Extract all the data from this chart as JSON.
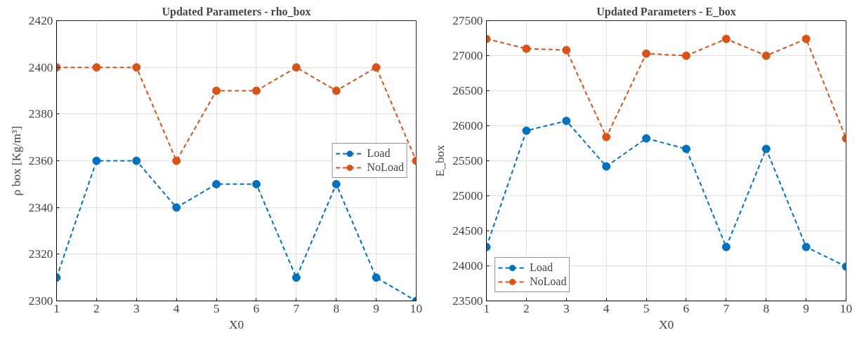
{
  "chart_data": [
    {
      "type": "line",
      "title": "Updated Parameters - rho_box",
      "xlabel": "X0",
      "ylabel": "ρ box [Kg/m³]",
      "x": [
        1,
        2,
        3,
        4,
        5,
        6,
        7,
        8,
        9,
        10
      ],
      "series": [
        {
          "name": "Load",
          "color": "#0072bd",
          "values": [
            2310,
            2360,
            2360,
            2340,
            2350,
            2350,
            2310,
            2350,
            2310,
            2300
          ]
        },
        {
          "name": "NoLoad",
          "color": "#d95319",
          "values": [
            2400,
            2400,
            2400,
            2360,
            2390,
            2390,
            2400,
            2390,
            2400,
            2360
          ]
        }
      ],
      "xlim": [
        1,
        10
      ],
      "xticks": [
        1,
        2,
        3,
        4,
        5,
        6,
        7,
        8,
        9,
        10
      ],
      "ylim": [
        2300,
        2420
      ],
      "yticks": [
        2300,
        2320,
        2340,
        2360,
        2380,
        2400,
        2420
      ],
      "grid": true,
      "legend": "right",
      "marker": "circle",
      "line_style": "dashed"
    },
    {
      "type": "line",
      "title": "Updated Parameters - E_box",
      "xlabel": "X0",
      "ylabel": "E_box",
      "x": [
        1,
        2,
        3,
        4,
        5,
        6,
        7,
        8,
        9,
        10
      ],
      "series": [
        {
          "name": "Load",
          "color": "#0072bd",
          "values": [
            24270,
            25930,
            26070,
            25420,
            25820,
            25670,
            24270,
            25670,
            24270,
            23990
          ]
        },
        {
          "name": "NoLoad",
          "color": "#d95319",
          "values": [
            27240,
            27100,
            27080,
            25840,
            27030,
            27000,
            27240,
            27000,
            27240,
            25820
          ]
        }
      ],
      "xlim": [
        1,
        10
      ],
      "xticks": [
        1,
        2,
        3,
        4,
        5,
        6,
        7,
        8,
        9,
        10
      ],
      "ylim": [
        23500,
        27500
      ],
      "yticks": [
        23500,
        24000,
        24500,
        25000,
        25500,
        26000,
        26500,
        27000,
        27500
      ],
      "grid": true,
      "legend": "bottom left",
      "marker": "circle",
      "line_style": "dashed"
    }
  ]
}
